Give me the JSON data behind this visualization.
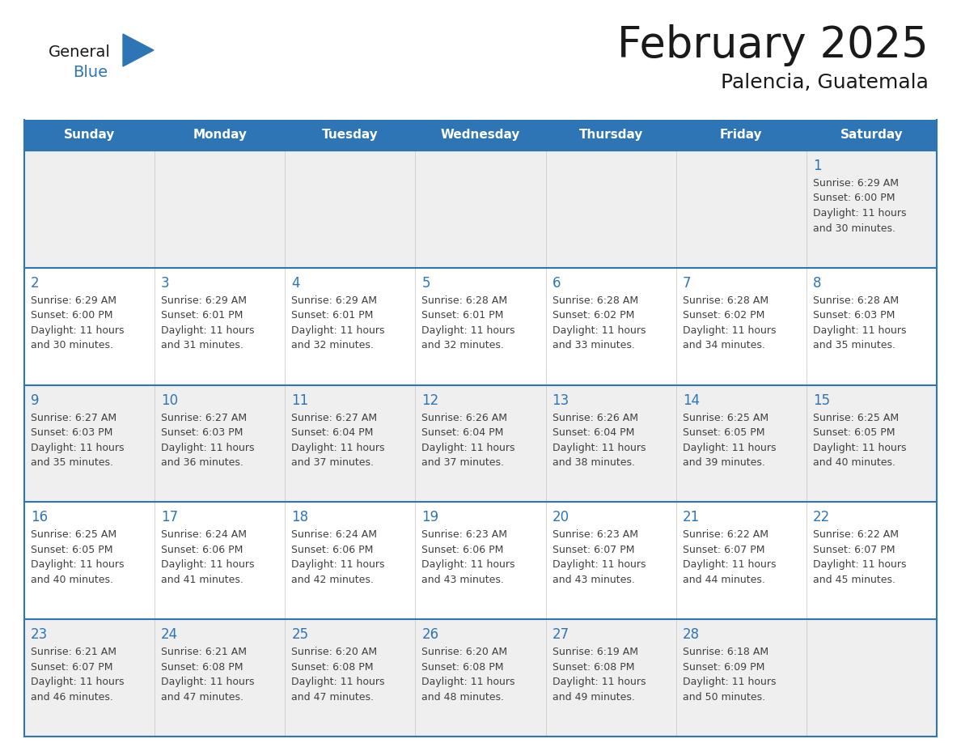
{
  "title": "February 2025",
  "subtitle": "Palencia, Guatemala",
  "days_of_week": [
    "Sunday",
    "Monday",
    "Tuesday",
    "Wednesday",
    "Thursday",
    "Friday",
    "Saturday"
  ],
  "header_bg": "#2E75B6",
  "header_text_color": "#FFFFFF",
  "cell_bg_white": "#FFFFFF",
  "cell_bg_gray": "#EFEFEF",
  "cell_border_color": "#2E75B6",
  "day_number_color": "#2E75B6",
  "text_color": "#404040",
  "title_color": "#1A1A1A",
  "logo_general_color": "#1A1A1A",
  "logo_blue_color": "#2E75B6",
  "calendar": [
    [
      null,
      null,
      null,
      null,
      null,
      null,
      1
    ],
    [
      2,
      3,
      4,
      5,
      6,
      7,
      8
    ],
    [
      9,
      10,
      11,
      12,
      13,
      14,
      15
    ],
    [
      16,
      17,
      18,
      19,
      20,
      21,
      22
    ],
    [
      23,
      24,
      25,
      26,
      27,
      28,
      null
    ]
  ],
  "cell_data": {
    "1": {
      "sunrise": "6:29 AM",
      "sunset": "6:00 PM",
      "daylight_mins": "30"
    },
    "2": {
      "sunrise": "6:29 AM",
      "sunset": "6:00 PM",
      "daylight_mins": "30"
    },
    "3": {
      "sunrise": "6:29 AM",
      "sunset": "6:01 PM",
      "daylight_mins": "31"
    },
    "4": {
      "sunrise": "6:29 AM",
      "sunset": "6:01 PM",
      "daylight_mins": "32"
    },
    "5": {
      "sunrise": "6:28 AM",
      "sunset": "6:01 PM",
      "daylight_mins": "32"
    },
    "6": {
      "sunrise": "6:28 AM",
      "sunset": "6:02 PM",
      "daylight_mins": "33"
    },
    "7": {
      "sunrise": "6:28 AM",
      "sunset": "6:02 PM",
      "daylight_mins": "34"
    },
    "8": {
      "sunrise": "6:28 AM",
      "sunset": "6:03 PM",
      "daylight_mins": "35"
    },
    "9": {
      "sunrise": "6:27 AM",
      "sunset": "6:03 PM",
      "daylight_mins": "35"
    },
    "10": {
      "sunrise": "6:27 AM",
      "sunset": "6:03 PM",
      "daylight_mins": "36"
    },
    "11": {
      "sunrise": "6:27 AM",
      "sunset": "6:04 PM",
      "daylight_mins": "37"
    },
    "12": {
      "sunrise": "6:26 AM",
      "sunset": "6:04 PM",
      "daylight_mins": "37"
    },
    "13": {
      "sunrise": "6:26 AM",
      "sunset": "6:04 PM",
      "daylight_mins": "38"
    },
    "14": {
      "sunrise": "6:25 AM",
      "sunset": "6:05 PM",
      "daylight_mins": "39"
    },
    "15": {
      "sunrise": "6:25 AM",
      "sunset": "6:05 PM",
      "daylight_mins": "40"
    },
    "16": {
      "sunrise": "6:25 AM",
      "sunset": "6:05 PM",
      "daylight_mins": "40"
    },
    "17": {
      "sunrise": "6:24 AM",
      "sunset": "6:06 PM",
      "daylight_mins": "41"
    },
    "18": {
      "sunrise": "6:24 AM",
      "sunset": "6:06 PM",
      "daylight_mins": "42"
    },
    "19": {
      "sunrise": "6:23 AM",
      "sunset": "6:06 PM",
      "daylight_mins": "43"
    },
    "20": {
      "sunrise": "6:23 AM",
      "sunset": "6:07 PM",
      "daylight_mins": "43"
    },
    "21": {
      "sunrise": "6:22 AM",
      "sunset": "6:07 PM",
      "daylight_mins": "44"
    },
    "22": {
      "sunrise": "6:22 AM",
      "sunset": "6:07 PM",
      "daylight_mins": "45"
    },
    "23": {
      "sunrise": "6:21 AM",
      "sunset": "6:07 PM",
      "daylight_mins": "46"
    },
    "24": {
      "sunrise": "6:21 AM",
      "sunset": "6:08 PM",
      "daylight_mins": "47"
    },
    "25": {
      "sunrise": "6:20 AM",
      "sunset": "6:08 PM",
      "daylight_mins": "47"
    },
    "26": {
      "sunrise": "6:20 AM",
      "sunset": "6:08 PM",
      "daylight_mins": "48"
    },
    "27": {
      "sunrise": "6:19 AM",
      "sunset": "6:08 PM",
      "daylight_mins": "49"
    },
    "28": {
      "sunrise": "6:18 AM",
      "sunset": "6:09 PM",
      "daylight_mins": "50"
    }
  }
}
